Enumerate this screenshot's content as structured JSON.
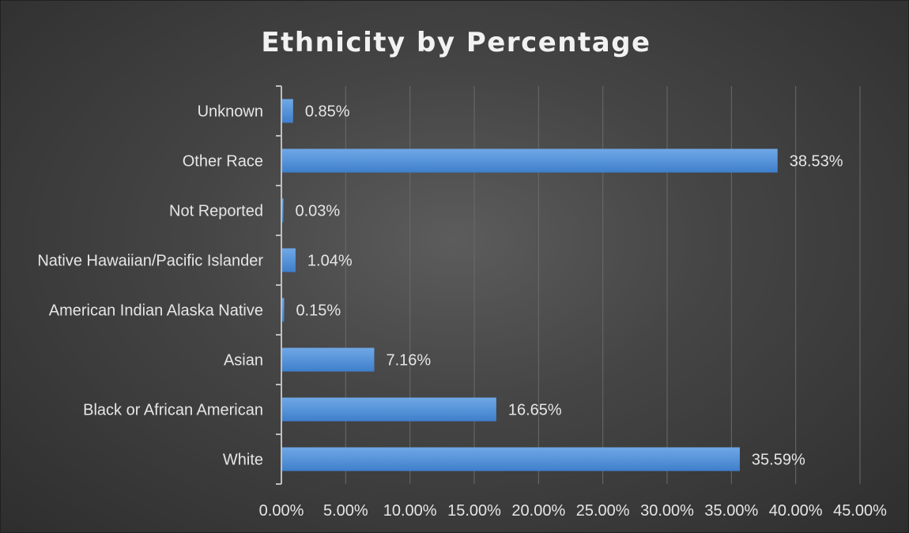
{
  "chart_data": {
    "type": "bar",
    "orientation": "horizontal",
    "title": "Ethnicity by Percentage",
    "xlabel": "",
    "ylabel": "",
    "categories": [
      "Unknown",
      "Other Race",
      "Not Reported",
      "Native Hawaiian/Pacific Islander",
      "American Indian Alaska Native",
      "Asian",
      "Black or African American",
      "White"
    ],
    "values": [
      0.85,
      38.53,
      0.03,
      1.04,
      0.15,
      7.16,
      16.65,
      35.59
    ],
    "value_labels": [
      "0.85%",
      "38.53%",
      "0.03%",
      "1.04%",
      "0.15%",
      "7.16%",
      "16.65%",
      "35.59%"
    ],
    "xlim": [
      0,
      45
    ],
    "x_ticks": [
      0,
      5,
      10,
      15,
      20,
      25,
      30,
      35,
      40,
      45
    ],
    "x_tick_labels": [
      "0.00%",
      "5.00%",
      "10.00%",
      "15.00%",
      "20.00%",
      "25.00%",
      "30.00%",
      "35.00%",
      "40.00%",
      "45.00%"
    ],
    "grid": true,
    "legend": "none",
    "colors": {
      "bar_top": "#6fa8e6",
      "bar_bottom": "#3f7fcb",
      "text": "#e6e6e6",
      "grid": "#6a6a6a",
      "axis": "#bfbfbf"
    }
  }
}
